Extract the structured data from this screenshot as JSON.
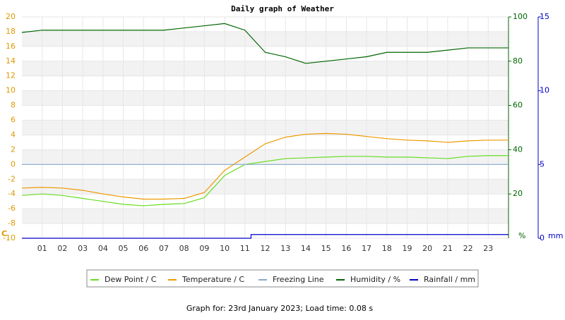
{
  "chart_data": {
    "type": "line",
    "title": "Daily graph of Weather",
    "footer": "Graph for: 23rd January 2023; Load time: 0.08 s",
    "x": [
      0,
      1,
      2,
      3,
      4,
      5,
      6,
      7,
      8,
      9,
      10,
      11,
      12,
      13,
      14,
      15,
      16,
      17,
      18,
      19,
      20,
      21,
      22,
      23,
      24
    ],
    "xlim": [
      0,
      24
    ],
    "xticks": [
      {
        "value": 1,
        "label": "01"
      },
      {
        "value": 2,
        "label": "02"
      },
      {
        "value": 3,
        "label": "03"
      },
      {
        "value": 4,
        "label": "04"
      },
      {
        "value": 5,
        "label": "05"
      },
      {
        "value": 6,
        "label": "06"
      },
      {
        "value": 7,
        "label": "07"
      },
      {
        "value": 8,
        "label": "08"
      },
      {
        "value": 9,
        "label": "09"
      },
      {
        "value": 10,
        "label": "10"
      },
      {
        "value": 11,
        "label": "11"
      },
      {
        "value": 12,
        "label": "12"
      },
      {
        "value": 13,
        "label": "13"
      },
      {
        "value": 14,
        "label": "14"
      },
      {
        "value": 15,
        "label": "15"
      },
      {
        "value": 16,
        "label": "16"
      },
      {
        "value": 17,
        "label": "17"
      },
      {
        "value": 18,
        "label": "18"
      },
      {
        "value": 19,
        "label": "19"
      },
      {
        "value": 20,
        "label": "20"
      },
      {
        "value": 21,
        "label": "21"
      },
      {
        "value": 22,
        "label": "22"
      },
      {
        "value": 23,
        "label": "23"
      }
    ],
    "ylim": [
      -10,
      20
    ],
    "yticks": [
      -10,
      -8,
      -6,
      -4,
      -2,
      0,
      2,
      4,
      6,
      8,
      10,
      12,
      14,
      16,
      18,
      20
    ],
    "y_unit": "C",
    "y2lim": [
      0,
      100
    ],
    "y2ticks": [
      20,
      40,
      60,
      80,
      100
    ],
    "y2_unit": "%",
    "y3lim": [
      0,
      15
    ],
    "y3ticks": [
      0,
      5,
      10,
      15
    ],
    "y3_unit": "mm",
    "series": [
      {
        "name": "Dew Point / C",
        "color": "#66dd22",
        "values": [
          -4.2,
          -4.0,
          -4.2,
          -4.6,
          -5.0,
          -5.4,
          -5.6,
          -5.4,
          -5.3,
          -4.5,
          -1.5,
          0.0,
          0.4,
          0.8,
          0.9,
          1.0,
          1.1,
          1.1,
          1.0,
          1.0,
          0.9,
          0.8,
          1.1,
          1.2,
          1.2
        ]
      },
      {
        "name": "Temperature / C",
        "color": "#ee9900",
        "values": [
          -3.2,
          -3.1,
          -3.2,
          -3.5,
          -4.0,
          -4.4,
          -4.7,
          -4.7,
          -4.6,
          -3.8,
          -0.8,
          1.0,
          2.8,
          3.7,
          4.1,
          4.2,
          4.1,
          3.8,
          3.5,
          3.3,
          3.2,
          3.0,
          3.2,
          3.3,
          3.3
        ]
      },
      {
        "name": "Freezing Line",
        "color": "#88aacc",
        "x": [
          0,
          24
        ],
        "values": [
          0,
          0
        ]
      },
      {
        "name": "Humidity / %",
        "color": "#006600",
        "axis": "y2",
        "values": [
          93,
          94,
          94,
          94,
          94,
          94,
          94,
          94,
          95,
          96,
          97,
          94,
          84,
          82,
          79,
          80,
          81,
          82,
          84,
          84,
          84,
          85,
          86,
          86,
          86
        ]
      },
      {
        "name": "Rainfall / mm",
        "color": "#0000cc",
        "axis": "y3",
        "x": [
          0,
          11.3,
          11.3,
          24
        ],
        "values": [
          0,
          0,
          0.25,
          0.25
        ]
      }
    ]
  }
}
